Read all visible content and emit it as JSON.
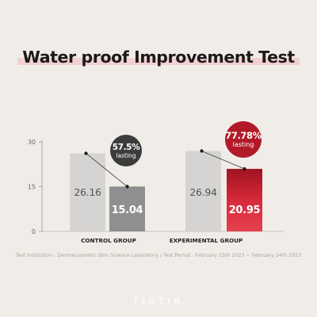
{
  "title": "Water proof Improvement Test",
  "footnote": "Test Institution : Dermacosmetic Skin Science Laboratory / Test Period : February 15th 2023 ~ February 24th 2023",
  "brand": "TIRTIR",
  "colors": {
    "background": "#f0ede8",
    "bar_gray_light": "#d5d4d2",
    "bar_gray_dark": "#8f8f8f",
    "bar_red": "#b71c2b",
    "badge_dark": "#3c3c3c",
    "badge_red": "#b21a29",
    "title_highlight": "#f2cfd0"
  },
  "chart_data": {
    "type": "bar",
    "title": "Water proof Improvement Test",
    "categories": [
      "CONTROL GROUP",
      "EXPERIMENTAL GROUP"
    ],
    "ylim": [
      0,
      30
    ],
    "yticks": [
      "0",
      "15",
      "30"
    ],
    "grid": false,
    "bars": [
      {
        "group": "CONTROL GROUP",
        "value": 26.16,
        "label": "26.16",
        "style": "light"
      },
      {
        "group": "CONTROL GROUP",
        "value": 15.04,
        "label": "15.04",
        "style": "dark"
      },
      {
        "group": "EXPERIMENTAL GROUP",
        "value": 26.94,
        "label": "26.94",
        "style": "light"
      },
      {
        "group": "EXPERIMENTAL GROUP",
        "value": 20.95,
        "label": "20.95",
        "style": "red"
      }
    ],
    "annotations": [
      {
        "group": "CONTROL GROUP",
        "value": "57.5%",
        "text": "lasting",
        "style": "dark"
      },
      {
        "group": "EXPERIMENTAL GROUP",
        "value": "77.78%",
        "text": "lasting",
        "style": "red"
      }
    ]
  }
}
